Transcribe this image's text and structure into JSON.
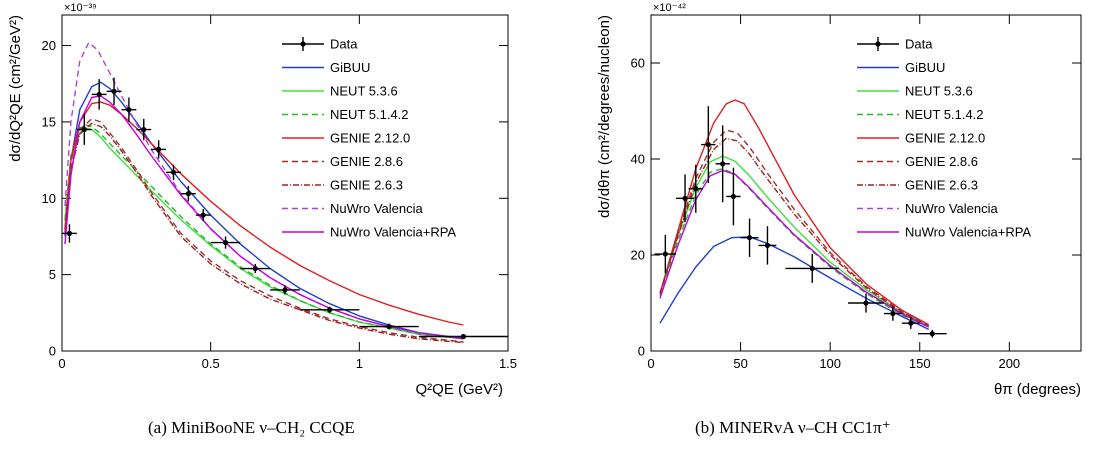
{
  "captions": {
    "a": "(a) MiniBooNE ν–CH₂ CCQE",
    "b": "(b) MINERvA ν–CH CC1π⁺"
  },
  "legend_style": [
    {
      "key": "Data",
      "color": "#000000",
      "dash": "",
      "marker": true
    },
    {
      "key": "GiBUU",
      "color": "#1f3fd1",
      "dash": ""
    },
    {
      "key": "NEUT 5.3.6",
      "color": "#3ee03e",
      "dash": ""
    },
    {
      "key": "NEUT 5.1.4.2",
      "color": "#28b428",
      "dash": "6,4"
    },
    {
      "key": "GENIE 2.12.0",
      "color": "#e02020",
      "dash": ""
    },
    {
      "key": "GENIE 2.8.6",
      "color": "#a03030",
      "dash": "6,4"
    },
    {
      "key": "GENIE 2.6.3",
      "color": "#a02020",
      "dash": "6,2,1,2"
    },
    {
      "key": "NuWro Valencia",
      "color": "#b040e0",
      "dash": "6,4"
    },
    {
      "key": "NuWro Valencia+RPA",
      "color": "#c000e0",
      "dash": ""
    }
  ],
  "chart_data": [
    {
      "type": "line",
      "caption": "(a) MiniBooNE ν–CH₂ CCQE",
      "ylabel": "dσ/dQ²QE (cm²/GeV²)",
      "xlabel": "Q²QE (GeV²)",
      "y_exponent": "×10⁻³⁹",
      "xlim": [
        0,
        1.5
      ],
      "ylim": [
        0,
        22
      ],
      "xticks": [
        0,
        0.5,
        1,
        1.5
      ],
      "xtick_labels": [
        "0",
        "0.5",
        "1",
        "1.5"
      ],
      "yticks": [
        0,
        5,
        10,
        15,
        20
      ],
      "ytick_labels": [
        "0",
        "5",
        "10",
        "15",
        "20"
      ],
      "legend": [
        "Data",
        "GiBUU",
        "NEUT 5.3.6",
        "NEUT 5.1.4.2",
        "GENIE 2.12.0",
        "GENIE 2.8.6",
        "GENIE 2.6.3",
        "NuWro Valencia",
        "NuWro Valencia+RPA"
      ],
      "legend_placement": "top-right",
      "grid": false,
      "data_points": [
        {
          "x": 0.025,
          "y": 7.7,
          "xerr": 0.025,
          "yerr": 0.6
        },
        {
          "x": 0.075,
          "y": 14.5,
          "xerr": 0.025,
          "yerr": 1.0
        },
        {
          "x": 0.125,
          "y": 16.8,
          "xerr": 0.025,
          "yerr": 1.0
        },
        {
          "x": 0.175,
          "y": 17.0,
          "xerr": 0.025,
          "yerr": 0.9
        },
        {
          "x": 0.225,
          "y": 15.8,
          "xerr": 0.025,
          "yerr": 0.8
        },
        {
          "x": 0.275,
          "y": 14.5,
          "xerr": 0.025,
          "yerr": 0.7
        },
        {
          "x": 0.325,
          "y": 13.2,
          "xerr": 0.025,
          "yerr": 0.6
        },
        {
          "x": 0.375,
          "y": 11.7,
          "xerr": 0.025,
          "yerr": 0.5
        },
        {
          "x": 0.425,
          "y": 10.3,
          "xerr": 0.025,
          "yerr": 0.5
        },
        {
          "x": 0.475,
          "y": 8.9,
          "xerr": 0.025,
          "yerr": 0.4
        },
        {
          "x": 0.55,
          "y": 7.1,
          "xerr": 0.05,
          "yerr": 0.4
        },
        {
          "x": 0.65,
          "y": 5.4,
          "xerr": 0.05,
          "yerr": 0.3
        },
        {
          "x": 0.75,
          "y": 4.0,
          "xerr": 0.05,
          "yerr": 0.3
        },
        {
          "x": 0.9,
          "y": 2.7,
          "xerr": 0.1,
          "yerr": 0.2
        },
        {
          "x": 1.1,
          "y": 1.6,
          "xerr": 0.1,
          "yerr": 0.2
        },
        {
          "x": 1.35,
          "y": 0.95,
          "xerr": 0.15,
          "yerr": 0.1
        }
      ],
      "series": [
        {
          "name": "GiBUU",
          "x": [
            0.01,
            0.03,
            0.06,
            0.1,
            0.13,
            0.16,
            0.2,
            0.25,
            0.3,
            0.4,
            0.5,
            0.6,
            0.7,
            0.8,
            0.9,
            1.0,
            1.1,
            1.2,
            1.3,
            1.35
          ],
          "y": [
            7.5,
            12.5,
            15.8,
            17.3,
            17.6,
            17.2,
            16.3,
            15.0,
            13.6,
            11.1,
            8.9,
            7.0,
            5.4,
            4.1,
            3.1,
            2.3,
            1.7,
            1.2,
            0.95,
            0.85
          ]
        },
        {
          "name": "NEUT 5.3.6",
          "x": [
            0.01,
            0.03,
            0.06,
            0.08,
            0.1,
            0.13,
            0.16,
            0.2,
            0.3,
            0.4,
            0.5,
            0.6,
            0.7,
            0.8,
            0.9,
            1.0,
            1.1,
            1.2,
            1.35
          ],
          "y": [
            8.5,
            12.5,
            14.3,
            14.6,
            14.5,
            14.0,
            13.3,
            12.5,
            10.5,
            8.6,
            6.9,
            5.4,
            4.2,
            3.3,
            2.5,
            1.9,
            1.5,
            1.1,
            0.8
          ]
        },
        {
          "name": "NEUT 5.1.4.2",
          "x": [
            0.01,
            0.03,
            0.06,
            0.08,
            0.1,
            0.13,
            0.16,
            0.2,
            0.3,
            0.4,
            0.5,
            0.6,
            0.7,
            0.8,
            0.9,
            1.0,
            1.1,
            1.2,
            1.35
          ],
          "y": [
            8.6,
            12.8,
            14.6,
            14.8,
            14.7,
            14.2,
            13.6,
            12.8,
            10.8,
            8.8,
            7.0,
            5.5,
            4.3,
            3.3,
            2.5,
            1.9,
            1.5,
            1.1,
            0.8
          ]
        },
        {
          "name": "GENIE 2.12.0",
          "x": [
            0.01,
            0.03,
            0.06,
            0.1,
            0.13,
            0.16,
            0.2,
            0.25,
            0.3,
            0.4,
            0.5,
            0.6,
            0.7,
            0.8,
            0.9,
            1.0,
            1.1,
            1.2,
            1.3,
            1.35
          ],
          "y": [
            8.0,
            12.5,
            15.0,
            16.2,
            16.3,
            16.1,
            15.5,
            14.6,
            13.6,
            11.6,
            9.8,
            8.2,
            6.8,
            5.6,
            4.6,
            3.7,
            3.0,
            2.4,
            1.9,
            1.7
          ]
        },
        {
          "name": "GENIE 2.8.6",
          "x": [
            0.01,
            0.03,
            0.06,
            0.1,
            0.13,
            0.16,
            0.2,
            0.25,
            0.3,
            0.4,
            0.5,
            0.6,
            0.7,
            0.8,
            0.9,
            1.0,
            1.1,
            1.2,
            1.35
          ],
          "y": [
            8.0,
            12.0,
            14.5,
            15.2,
            15.0,
            14.3,
            13.3,
            11.9,
            10.4,
            7.7,
            5.9,
            4.6,
            3.6,
            2.8,
            2.1,
            1.6,
            1.2,
            0.9,
            0.6
          ]
        },
        {
          "name": "GENIE 2.6.3",
          "x": [
            0.01,
            0.03,
            0.06,
            0.1,
            0.13,
            0.16,
            0.2,
            0.25,
            0.3,
            0.4,
            0.5,
            0.6,
            0.7,
            0.8,
            0.9,
            1.0,
            1.1,
            1.2,
            1.35
          ],
          "y": [
            7.8,
            11.8,
            14.2,
            14.9,
            14.7,
            14.1,
            13.1,
            11.7,
            10.2,
            7.5,
            5.7,
            4.4,
            3.4,
            2.7,
            2.0,
            1.5,
            1.1,
            0.8,
            0.55
          ]
        },
        {
          "name": "NuWro Valencia",
          "x": [
            0.01,
            0.03,
            0.06,
            0.09,
            0.12,
            0.15,
            0.2,
            0.25,
            0.3,
            0.4,
            0.5,
            0.6,
            0.7,
            0.8,
            0.9,
            1.0,
            1.1,
            1.2,
            1.35
          ],
          "y": [
            9.5,
            15.0,
            19.0,
            20.2,
            19.7,
            18.6,
            16.7,
            14.9,
            13.2,
            10.3,
            8.0,
            6.2,
            4.8,
            3.7,
            2.8,
            2.1,
            1.6,
            1.2,
            0.8
          ]
        },
        {
          "name": "NuWro Valencia+RPA",
          "x": [
            0.01,
            0.03,
            0.06,
            0.1,
            0.13,
            0.16,
            0.2,
            0.25,
            0.3,
            0.4,
            0.5,
            0.6,
            0.7,
            0.8,
            0.9,
            1.0,
            1.1,
            1.2,
            1.35
          ],
          "y": [
            7.0,
            11.5,
            15.0,
            16.6,
            16.7,
            16.3,
            15.5,
            14.2,
            12.8,
            10.2,
            8.0,
            6.2,
            4.8,
            3.7,
            2.8,
            2.1,
            1.6,
            1.2,
            0.8
          ]
        }
      ]
    },
    {
      "type": "line",
      "caption": "(b) MINERvA ν–CH CC1π⁺",
      "ylabel": "dσ/dθπ (cm²/degrees/nucleon)",
      "xlabel": "θπ (degrees)",
      "y_exponent": "×10⁻⁴²",
      "xlim": [
        0,
        240
      ],
      "ylim": [
        0,
        70
      ],
      "xticks": [
        0,
        50,
        100,
        150,
        200
      ],
      "xtick_labels": [
        "0",
        "50",
        "100",
        "150",
        "200"
      ],
      "yticks": [
        0,
        20,
        40,
        60
      ],
      "ytick_labels": [
        "0",
        "20",
        "40",
        "60"
      ],
      "legend": [
        "Data",
        "GiBUU",
        "NEUT 5.3.6",
        "NEUT 5.1.4.2",
        "GENIE 2.12.0",
        "GENIE 2.8.6",
        "GENIE 2.6.3",
        "NuWro Valencia",
        "NuWro Valencia+RPA"
      ],
      "legend_placement": "top-right",
      "grid": false,
      "data_points": [
        {
          "x": 8,
          "y": 20.2,
          "xerr": 6,
          "yerr": 4
        },
        {
          "x": 19,
          "y": 31.8,
          "xerr": 5,
          "yerr": 5
        },
        {
          "x": 25,
          "y": 33.8,
          "xerr": 4,
          "yerr": 5
        },
        {
          "x": 32,
          "y": 43.0,
          "xerr": 4,
          "yerr": 8
        },
        {
          "x": 40,
          "y": 39.0,
          "xerr": 4,
          "yerr": 8
        },
        {
          "x": 46,
          "y": 32.2,
          "xerr": 4,
          "yerr": 6
        },
        {
          "x": 55,
          "y": 23.6,
          "xerr": 5,
          "yerr": 4
        },
        {
          "x": 65,
          "y": 22.0,
          "xerr": 5,
          "yerr": 4
        },
        {
          "x": 90,
          "y": 17.2,
          "xerr": 15,
          "yerr": 3
        },
        {
          "x": 120,
          "y": 10.0,
          "xerr": 10,
          "yerr": 2
        },
        {
          "x": 135,
          "y": 7.8,
          "xerr": 5,
          "yerr": 1.5
        },
        {
          "x": 145,
          "y": 5.8,
          "xerr": 5,
          "yerr": 1.2
        },
        {
          "x": 157,
          "y": 3.6,
          "xerr": 8,
          "yerr": 0.8
        }
      ],
      "series": [
        {
          "name": "GiBUU",
          "x": [
            5,
            15,
            25,
            35,
            45,
            55,
            65,
            80,
            100,
            120,
            140,
            155
          ],
          "y": [
            5.8,
            12,
            17.5,
            21.8,
            23.6,
            23.8,
            22.4,
            19.6,
            15.2,
            11.0,
            7.2,
            4.5
          ]
        },
        {
          "name": "NEUT 5.3.6",
          "x": [
            5,
            15,
            25,
            33,
            40,
            47,
            55,
            65,
            80,
            100,
            120,
            140,
            155
          ],
          "y": [
            12,
            24,
            34,
            39.4,
            40.6,
            39.5,
            36.5,
            32.0,
            25.8,
            18.5,
            12.8,
            8.0,
            5.5
          ]
        },
        {
          "name": "NEUT 5.1.4.2",
          "x": [
            5,
            15,
            25,
            33,
            40,
            47,
            55,
            65,
            80,
            100,
            120,
            140,
            155
          ],
          "y": [
            11.5,
            23,
            32.5,
            37.2,
            38.0,
            36.8,
            33.8,
            29.8,
            24.0,
            17.5,
            12.0,
            7.5,
            5.0
          ]
        },
        {
          "name": "GENIE 2.12.0",
          "x": [
            5,
            15,
            25,
            35,
            42,
            47,
            52,
            60,
            70,
            80,
            100,
            120,
            140,
            155
          ],
          "y": [
            12,
            25,
            38,
            47.5,
            51.5,
            52.3,
            51.5,
            46.5,
            39.5,
            32.5,
            21.5,
            14.0,
            8.5,
            5.5
          ]
        },
        {
          "name": "GENIE 2.8.6",
          "x": [
            5,
            15,
            25,
            35,
            42,
            48,
            55,
            65,
            80,
            100,
            120,
            140,
            155
          ],
          "y": [
            12,
            24.5,
            36,
            43.5,
            46.0,
            45.5,
            42.5,
            37.0,
            29.5,
            20.5,
            13.5,
            8.2,
            5.2
          ]
        },
        {
          "name": "GENIE 2.6.3",
          "x": [
            5,
            15,
            25,
            35,
            42,
            48,
            55,
            65,
            80,
            100,
            120,
            140,
            155
          ],
          "y": [
            12,
            24,
            35,
            42.0,
            44.3,
            43.8,
            41.0,
            35.8,
            28.5,
            20.0,
            13.2,
            8.0,
            5.0
          ]
        },
        {
          "name": "NuWro Valencia+RPA",
          "x": [
            5,
            15,
            25,
            33,
            40,
            47,
            55,
            65,
            80,
            100,
            120,
            140,
            155
          ],
          "y": [
            11,
            22,
            31.5,
            36.5,
            37.6,
            36.8,
            34.0,
            30.0,
            24.2,
            17.8,
            12.3,
            7.8,
            5.0
          ]
        }
      ]
    }
  ]
}
